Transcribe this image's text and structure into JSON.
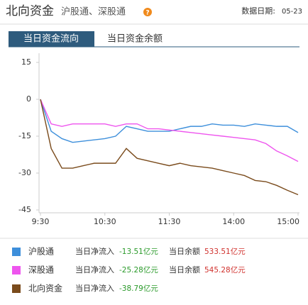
{
  "header": {
    "title": "北向资金",
    "subtitle": "沪股通、深股通",
    "help": "?",
    "date_label": "数据日期:",
    "date": "05-23"
  },
  "tabs": [
    "当日资金流向",
    "当日资金余额"
  ],
  "chart_data": {
    "type": "line",
    "x": [
      0,
      10,
      20,
      30,
      40,
      50,
      60,
      70,
      80,
      90,
      100,
      110,
      120,
      130,
      140,
      150,
      160,
      170,
      180,
      190,
      200,
      210,
      220,
      230,
      240
    ],
    "xlim": [
      0,
      240
    ],
    "xticks": [
      {
        "value": 0,
        "label": "9:30"
      },
      {
        "value": 60,
        "label": "10:30"
      },
      {
        "value": 120,
        "label": "11:30"
      },
      {
        "value": 180,
        "label": "14:00"
      },
      {
        "value": 240,
        "label": "15:00"
      }
    ],
    "ylim": [
      -45,
      15
    ],
    "yticks": [
      15,
      0,
      -15,
      -30,
      -45
    ],
    "series": [
      {
        "name": "沪股通",
        "color": "#3d8fdb",
        "values": [
          0,
          -13,
          -16,
          -17.5,
          -17,
          -16.5,
          -16,
          -15,
          -11,
          -12,
          -13,
          -13,
          -13,
          -12,
          -11,
          -11,
          -10,
          -10.5,
          -10.5,
          -11,
          -10,
          -10.5,
          -11,
          -11,
          -13.51
        ]
      },
      {
        "name": "深股通",
        "color": "#ee55ee",
        "values": [
          0,
          -10,
          -11,
          -10,
          -10,
          -10,
          -10,
          -11,
          -10,
          -10,
          -12,
          -12,
          -12.5,
          -13,
          -13.5,
          -14,
          -14.5,
          -15,
          -15.5,
          -16,
          -16.5,
          -18,
          -21,
          -23,
          -25.28
        ]
      },
      {
        "name": "北向资金",
        "color": "#7a4b1c",
        "values": [
          0,
          -20,
          -28,
          -28,
          -27,
          -26,
          -26,
          -26,
          -20,
          -24,
          -25,
          -26,
          -27,
          -26,
          -27,
          -27.5,
          -28,
          -29,
          -30,
          -31,
          -33,
          -33.5,
          -35,
          -37,
          -38.79
        ]
      }
    ]
  },
  "summary": {
    "inflow_label": "当日净流入",
    "balance_label": "当日余额",
    "rows": [
      {
        "inflow": "-13.51亿元",
        "balance": "533.51亿元"
      },
      {
        "inflow": "-25.28亿元",
        "balance": "545.28亿元"
      },
      {
        "inflow": "-38.79亿元"
      }
    ]
  }
}
